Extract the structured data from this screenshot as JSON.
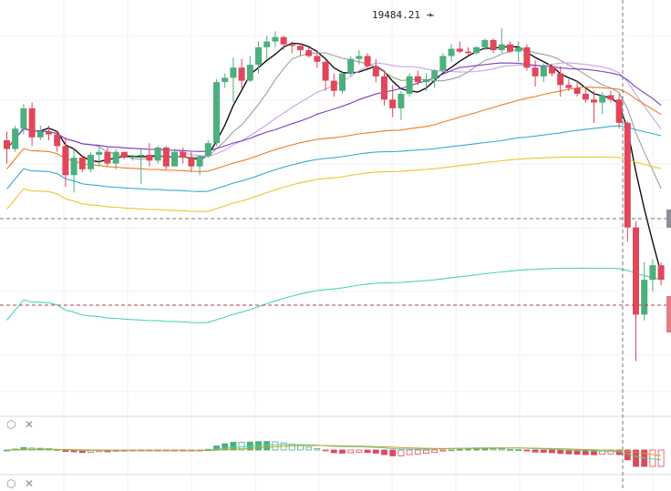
{
  "chart_data": {
    "type": "candlestick",
    "annotation": {
      "label": "19484.21 ➔",
      "value": 19484.21
    },
    "price_range": [
      18150,
      19520
    ],
    "candles": [
      [
        19100,
        19130,
        19020,
        19070
      ],
      [
        19070,
        19150,
        19060,
        19140
      ],
      [
        19140,
        19225,
        19120,
        19210
      ],
      [
        19210,
        19230,
        19080,
        19110
      ],
      [
        19110,
        19150,
        19100,
        19130
      ],
      [
        19130,
        19150,
        19100,
        19120
      ],
      [
        19120,
        19130,
        19060,
        19080
      ],
      [
        19080,
        19110,
        18940,
        18980
      ],
      [
        18980,
        19070,
        18920,
        19040
      ],
      [
        19040,
        19050,
        18990,
        19000
      ],
      [
        19000,
        19060,
        18990,
        19050
      ],
      [
        19050,
        19080,
        19010,
        19060
      ],
      [
        19060,
        19075,
        19010,
        19020
      ],
      [
        19020,
        19070,
        19000,
        19060
      ],
      [
        19060,
        19060,
        19035,
        19040
      ],
      [
        19040,
        19050,
        19030,
        19045
      ],
      [
        19045,
        19070,
        18950,
        19050
      ],
      [
        19050,
        19090,
        19010,
        19030
      ],
      [
        19030,
        19080,
        19020,
        19075
      ],
      [
        19075,
        19080,
        19000,
        19010
      ],
      [
        19010,
        19070,
        19010,
        19060
      ],
      [
        19060,
        19075,
        19020,
        19040
      ],
      [
        19040,
        19060,
        18990,
        19010
      ],
      [
        19010,
        19050,
        18980,
        19045
      ],
      [
        19045,
        19100,
        19040,
        19090
      ],
      [
        19090,
        19310,
        19080,
        19300
      ],
      [
        19300,
        19330,
        19280,
        19315
      ],
      [
        19315,
        19385,
        19230,
        19350
      ],
      [
        19350,
        19380,
        19280,
        19305
      ],
      [
        19305,
        19390,
        19300,
        19360
      ],
      [
        19360,
        19440,
        19330,
        19420
      ],
      [
        19420,
        19460,
        19380,
        19440
      ],
      [
        19440,
        19475,
        19420,
        19455
      ],
      [
        19455,
        19460,
        19410,
        19430
      ],
      [
        19430,
        19440,
        19400,
        19425
      ],
      [
        19425,
        19435,
        19390,
        19410
      ],
      [
        19410,
        19420,
        19385,
        19390
      ],
      [
        19390,
        19410,
        19350,
        19370
      ],
      [
        19370,
        19375,
        19270,
        19305
      ],
      [
        19305,
        19330,
        19250,
        19270
      ],
      [
        19270,
        19340,
        19260,
        19330
      ],
      [
        19330,
        19390,
        19320,
        19380
      ],
      [
        19380,
        19410,
        19360,
        19390
      ],
      [
        19390,
        19400,
        19350,
        19355
      ],
      [
        19355,
        19380,
        19300,
        19320
      ],
      [
        19320,
        19340,
        19220,
        19240
      ],
      [
        19240,
        19290,
        19180,
        19210
      ],
      [
        19210,
        19270,
        19170,
        19260
      ],
      [
        19260,
        19330,
        19250,
        19320
      ],
      [
        19320,
        19340,
        19290,
        19300
      ],
      [
        19300,
        19330,
        19270,
        19310
      ],
      [
        19310,
        19345,
        19280,
        19340
      ],
      [
        19340,
        19400,
        19330,
        19390
      ],
      [
        19390,
        19430,
        19370,
        19415
      ],
      [
        19415,
        19440,
        19400,
        19405
      ],
      [
        19405,
        19420,
        19390,
        19400
      ],
      [
        19400,
        19425,
        19395,
        19420
      ],
      [
        19420,
        19450,
        19410,
        19445
      ],
      [
        19445,
        19450,
        19400,
        19410
      ],
      [
        19410,
        19485,
        19400,
        19430
      ],
      [
        19430,
        19440,
        19400,
        19405
      ],
      [
        19405,
        19440,
        19370,
        19420
      ],
      [
        19420,
        19430,
        19340,
        19350
      ],
      [
        19350,
        19375,
        19285,
        19320
      ],
      [
        19320,
        19365,
        19300,
        19355
      ],
      [
        19355,
        19360,
        19320,
        19330
      ],
      [
        19330,
        19355,
        19250,
        19290
      ],
      [
        19290,
        19310,
        19270,
        19280
      ],
      [
        19280,
        19305,
        19250,
        19260
      ],
      [
        19260,
        19280,
        19230,
        19240
      ],
      [
        19240,
        19270,
        19160,
        19230
      ],
      [
        19230,
        19265,
        19190,
        19255
      ],
      [
        19255,
        19270,
        19230,
        19240
      ],
      [
        19240,
        19260,
        19140,
        19160
      ],
      [
        19160,
        19165,
        18750,
        18800
      ],
      [
        18800,
        18820,
        18340,
        18500
      ],
      [
        18500,
        18680,
        18480,
        18620
      ],
      [
        18620,
        18690,
        18580,
        18670
      ],
      [
        18670,
        18680,
        18600,
        18620
      ]
    ],
    "ma_colors": [
      "#111111",
      "#9e9e9e",
      "#c8a2f0",
      "#7e3fbf",
      "#f27c1e",
      "#38a8d8",
      "#f2c22e",
      "#4dd4b0"
    ],
    "macd": {
      "fast_color": "#4dd4b0",
      "slow_color": "#c9a227",
      "up_color": "#4caf7d",
      "down_color": "#e0475a"
    },
    "colors": {
      "up": "#4caf7d",
      "down": "#e0475a",
      "grid": "#f0f0f0",
      "dash": "#777777"
    }
  },
  "icons": [
    "settings-icon",
    "close-icon"
  ]
}
